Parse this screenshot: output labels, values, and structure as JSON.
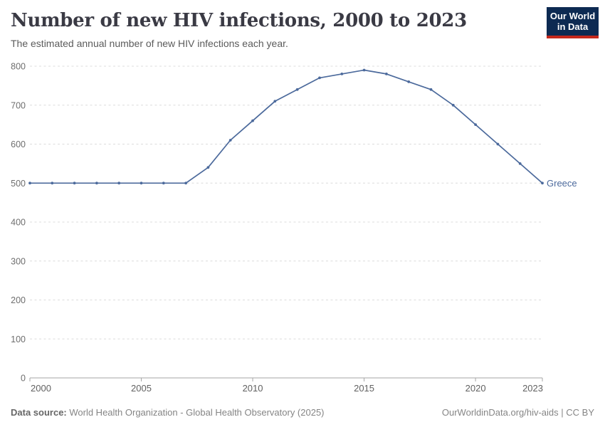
{
  "header": {
    "title": "Number of new HIV infections, 2000 to 2023",
    "subtitle": "The estimated annual number of new HIV infections each year."
  },
  "logo": {
    "line1": "Our World",
    "line2": "in Data",
    "bg_color": "#0d2a52",
    "bar_color": "#c5281c"
  },
  "chart_data": {
    "type": "line",
    "title": "Number of new HIV infections, 2000 to 2023",
    "x": [
      2000,
      2001,
      2002,
      2003,
      2004,
      2005,
      2006,
      2007,
      2008,
      2009,
      2010,
      2011,
      2012,
      2013,
      2014,
      2015,
      2016,
      2017,
      2018,
      2019,
      2020,
      2021,
      2022,
      2023
    ],
    "series": [
      {
        "name": "Greece",
        "color": "#4c6a9c",
        "values": [
          500,
          500,
          500,
          500,
          500,
          500,
          500,
          500,
          540,
          610,
          660,
          710,
          740,
          770,
          780,
          790,
          780,
          760,
          740,
          700,
          650,
          600,
          550,
          500
        ]
      }
    ],
    "xlabel": "",
    "ylabel": "",
    "ylim": [
      0,
      800
    ],
    "yticks": [
      0,
      100,
      200,
      300,
      400,
      500,
      600,
      700,
      800
    ],
    "xticks": [
      2000,
      2005,
      2010,
      2015,
      2020,
      2023
    ],
    "grid": "horizontal-dashed",
    "legend": "line-end-label"
  },
  "footer": {
    "data_source_label": "Data source:",
    "data_source_text": " World Health Organization - Global Health Observatory (2025)",
    "right_text": "OurWorldinData.org/hiv-aids | CC BY"
  }
}
